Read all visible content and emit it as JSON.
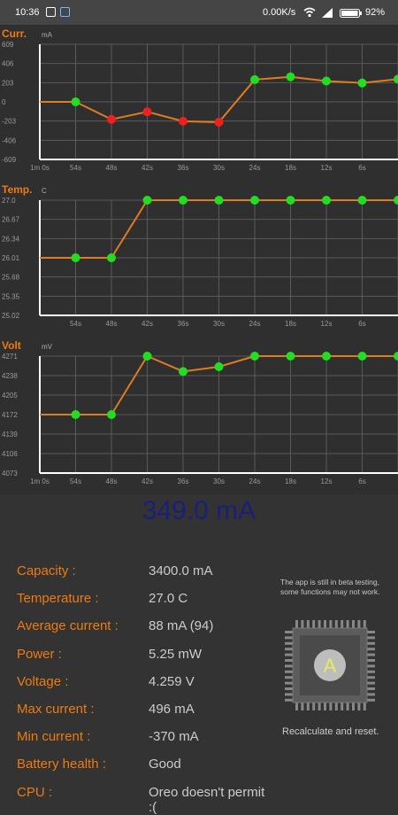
{
  "status_bar": {
    "time": "10:36",
    "net_speed": "0.00K/s",
    "battery": "92%"
  },
  "charts": [
    {
      "title": "Curr.",
      "unit": "mA",
      "y_ticks": [
        "609",
        "406",
        "203",
        "0",
        "-203",
        "-406",
        "-609"
      ],
      "x_ticks": [
        "1m 0s",
        "54s",
        "48s",
        "42s",
        "36s",
        "30s",
        "24s",
        "18s",
        "12s",
        "6s"
      ]
    },
    {
      "title": "Temp.",
      "unit": "C",
      "y_ticks": [
        "27.0",
        "26.67",
        "26.34",
        "26.01",
        "25.68",
        "25.35",
        "25.02"
      ],
      "x_ticks": [
        "",
        "54s",
        "48s",
        "42s",
        "36s",
        "30s",
        "24s",
        "18s",
        "12s",
        "6s"
      ]
    },
    {
      "title": "Volt",
      "unit": "mV",
      "y_ticks": [
        "4271",
        "4238",
        "4205",
        "4172",
        "4139",
        "4106",
        "4073"
      ],
      "x_ticks": [
        "1m 0s",
        "54s",
        "48s",
        "42s",
        "36s",
        "30s",
        "24s",
        "18s",
        "12s",
        "6s"
      ]
    }
  ],
  "chart_data": [
    {
      "type": "line",
      "title": "Curr.",
      "ylabel": "mA",
      "ylim": [
        -609,
        609
      ],
      "x": [
        "1m 0s",
        "54s",
        "48s",
        "42s",
        "36s",
        "30s",
        "24s",
        "18s",
        "12s",
        "6s",
        "0s"
      ],
      "values": [
        0,
        0,
        -185,
        -105,
        -205,
        -215,
        235,
        265,
        220,
        200,
        240
      ],
      "markers": [
        false,
        true,
        true,
        true,
        true,
        true,
        true,
        true,
        true,
        true,
        true
      ],
      "line_color": "#e07b20"
    },
    {
      "type": "line",
      "title": "Temp.",
      "ylabel": "C",
      "ylim": [
        25.02,
        27.0
      ],
      "x": [
        "1m 0s",
        "54s",
        "48s",
        "42s",
        "36s",
        "30s",
        "24s",
        "18s",
        "12s",
        "6s",
        "0s"
      ],
      "values": [
        26.01,
        26.01,
        26.01,
        27.0,
        27.0,
        27.0,
        27.0,
        27.0,
        27.0,
        27.0,
        27.0
      ],
      "markers": [
        false,
        true,
        true,
        true,
        true,
        true,
        true,
        true,
        true,
        true,
        true
      ],
      "line_color": "#e07b20"
    },
    {
      "type": "line",
      "title": "Volt",
      "ylabel": "mV",
      "ylim": [
        4073,
        4271
      ],
      "x": [
        "1m 0s",
        "54s",
        "48s",
        "42s",
        "36s",
        "30s",
        "24s",
        "18s",
        "12s",
        "6s",
        "0s"
      ],
      "values": [
        4172,
        4172,
        4172,
        4271,
        4245,
        4253,
        4271,
        4271,
        4271,
        4271,
        4271
      ],
      "markers": [
        false,
        true,
        true,
        true,
        true,
        true,
        true,
        true,
        true,
        true,
        true
      ],
      "line_color": "#e07b20"
    }
  ],
  "colors": {
    "accent_orange": "#ee7a12",
    "point_positive": "#22dd22",
    "point_negative": "#ee2020",
    "live_value": "#1a1f7a"
  },
  "live_reading": "349.0 mA",
  "info_rows": [
    {
      "label": "Capacity :",
      "value": "3400.0 mA"
    },
    {
      "label": "Temperature :",
      "value": "27.0 C"
    },
    {
      "label": "Average current :",
      "value": "88 mA (94)"
    },
    {
      "label": "Power :",
      "value": "5.25 mW"
    },
    {
      "label": "Voltage :",
      "value": "4.259 V"
    },
    {
      "label": "Max current :",
      "value": "496 mA"
    },
    {
      "label": "Min current :",
      "value": "-370 mA"
    },
    {
      "label": "Battery health :",
      "value": "Good"
    },
    {
      "label": "CPU :",
      "value": "Oreo doesn't permit :("
    }
  ],
  "beta_note": "The app is still in beta testing, some functions may not work.",
  "chip_letter": "A",
  "reset_label": "Recalculate and reset."
}
